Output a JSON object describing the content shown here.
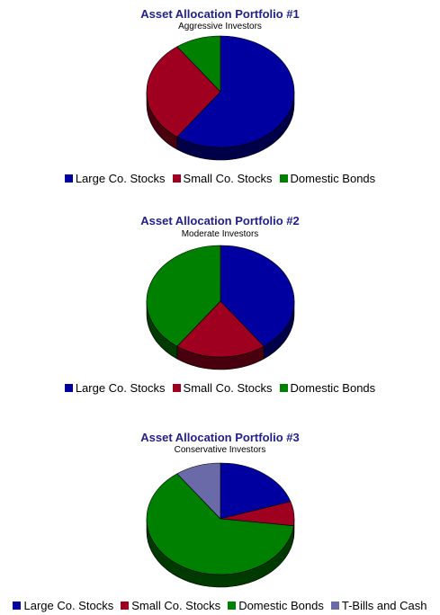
{
  "colors": {
    "title": "#1f1f8f",
    "large_co_stocks": "#0000a0",
    "small_co_stocks": "#a00020",
    "domestic_bonds": "#008000",
    "tbills_cash": "#6a6aa8"
  },
  "chart_data": [
    {
      "type": "pie",
      "title": "Asset Allocation Portfolio #1",
      "subtitle": "Aggressive Investors",
      "legend_position": "bottom",
      "slices": [
        {
          "label": "Large Co. Stocks",
          "value": 60,
          "color": "#0000a0"
        },
        {
          "label": "Small Co. Stocks",
          "value": 30,
          "color": "#a00020"
        },
        {
          "label": "Domestic Bonds",
          "value": 10,
          "color": "#008000"
        }
      ]
    },
    {
      "type": "pie",
      "title": "Asset Allocation Portfolio #2",
      "subtitle": "Moderate Investors",
      "legend_position": "bottom",
      "slices": [
        {
          "label": "Large Co. Stocks",
          "value": 40,
          "color": "#0000a0"
        },
        {
          "label": "Small Co. Stocks",
          "value": 20,
          "color": "#a00020"
        },
        {
          "label": "Domestic Bonds",
          "value": 40,
          "color": "#008000"
        }
      ]
    },
    {
      "type": "pie",
      "title": "Asset Allocation Portfolio #3",
      "subtitle": "Conservative Investors",
      "legend_position": "bottom",
      "slices": [
        {
          "label": "Large Co. Stocks",
          "value": 20,
          "color": "#0000a0"
        },
        {
          "label": "Small Co. Stocks",
          "value": 7,
          "color": "#a00020"
        },
        {
          "label": "Domestic Bonds",
          "value": 63,
          "color": "#008000"
        },
        {
          "label": "T-Bills and Cash",
          "value": 10,
          "color": "#6a6aa8"
        }
      ]
    }
  ]
}
